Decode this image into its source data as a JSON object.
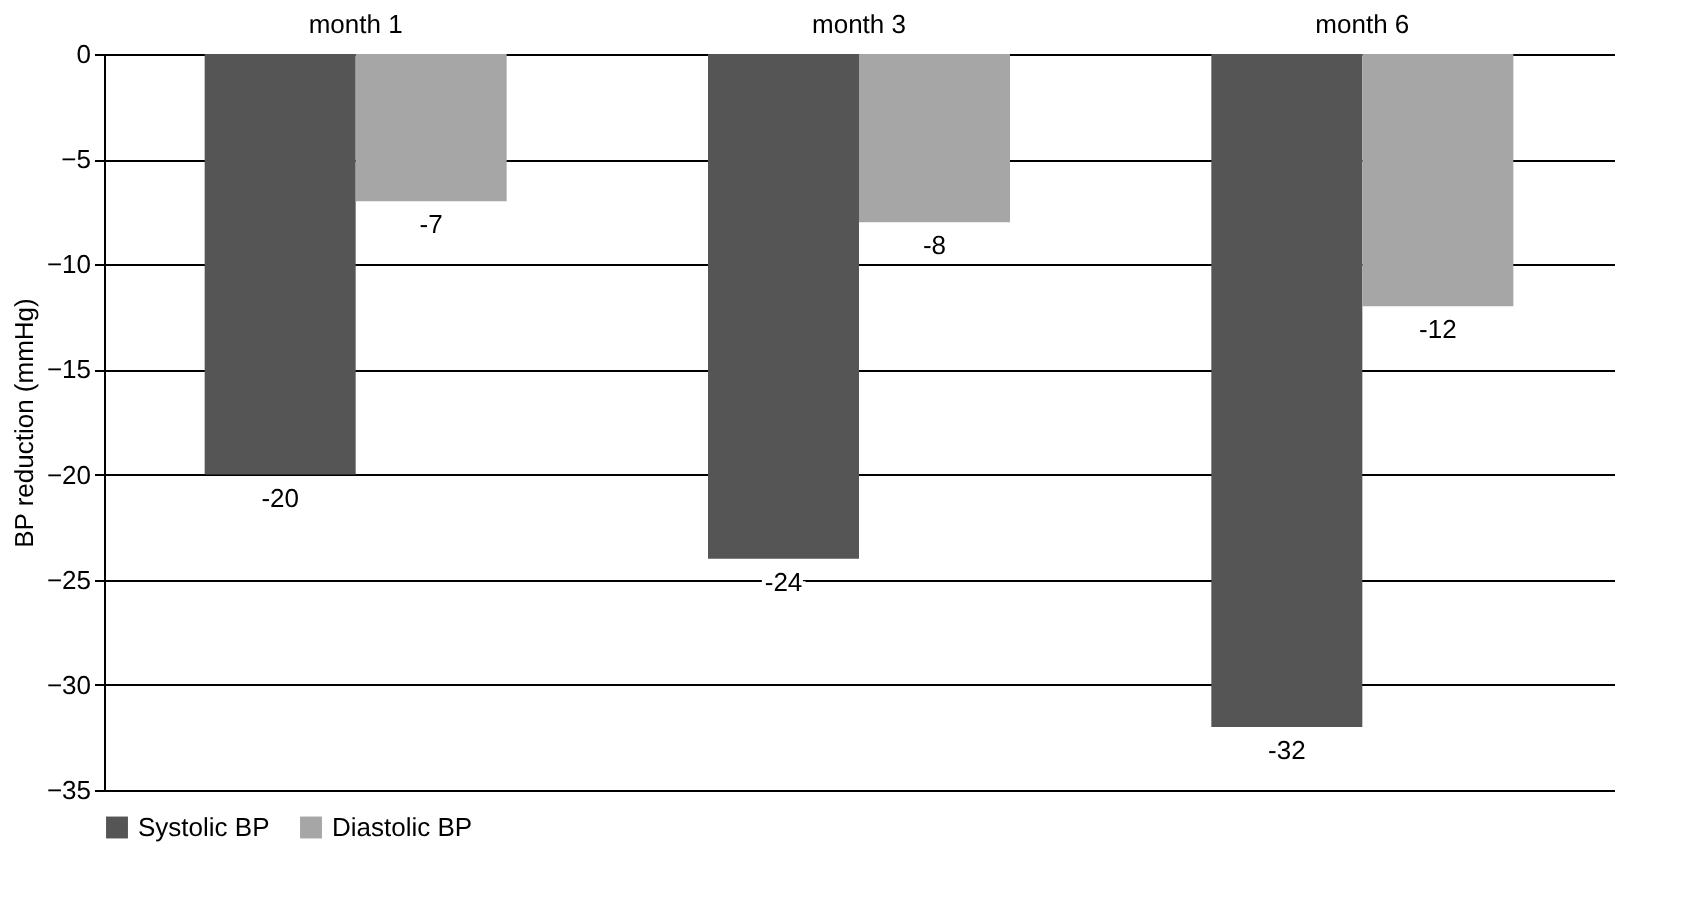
{
  "chart_data": {
    "type": "bar",
    "ylabel": "BP reduction (mmHg)",
    "categories": [
      "month 1",
      "month 3",
      "month 6"
    ],
    "series": [
      {
        "name": "Systolic BP",
        "color": "#555555",
        "values": [
          -20,
          -24,
          -32
        ]
      },
      {
        "name": "Diastolic BP",
        "color": "#a6a6a6",
        "values": [
          -7,
          -8,
          -12
        ]
      }
    ],
    "ylim": [
      -35,
      0
    ],
    "yticks": [
      -35,
      -30,
      -25,
      -20,
      -15,
      -10,
      -5,
      0
    ],
    "grid": "y",
    "legend": "bottom",
    "data_labels": true
  }
}
